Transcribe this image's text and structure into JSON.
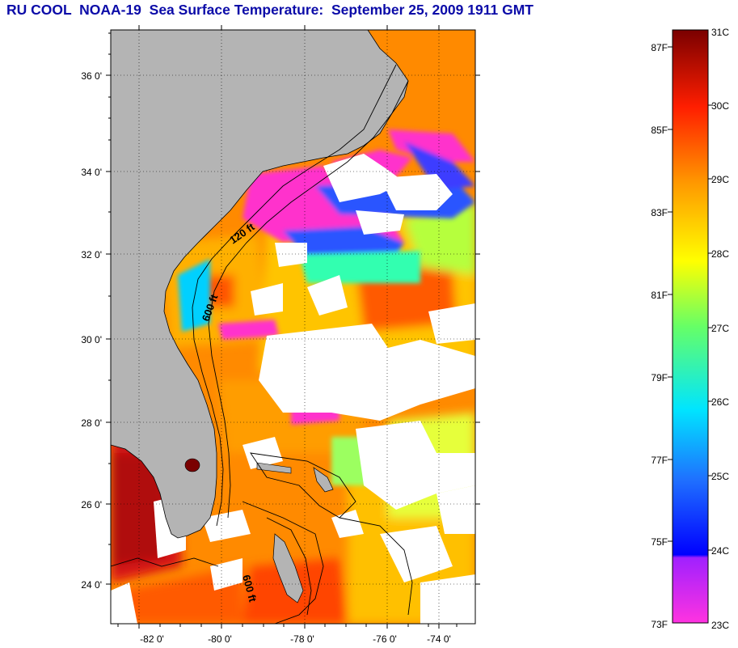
{
  "title": "RU COOL  NOAA-19  Sea Surface Temperature:  September 25, 2009 1911 GMT",
  "lat_ticks": [
    "36 0'",
    "34 0'",
    "32 0'",
    "30 0'",
    "28 0'",
    "26 0'",
    "24 0'"
  ],
  "lon_ticks": [
    "-82 0'",
    "-80 0'",
    "-78 0'",
    "-76 0'",
    "-74 0'"
  ],
  "contour_labels": [
    "120 ft",
    "600 ft",
    "600 ft"
  ],
  "colorbar": {
    "fahrenheit": [
      "87F",
      "85F",
      "83F",
      "81F",
      "79F",
      "77F",
      "75F",
      "73F"
    ],
    "celsius": [
      "31C",
      "30C",
      "29C",
      "28C",
      "27C",
      "26C",
      "25C",
      "24C",
      "23C"
    ]
  },
  "colors": {
    "title": "#0b0ba8",
    "land": "#b4b4b4",
    "cloud": "#ffffff",
    "warm": "#ff6a00",
    "hot": "#c81212",
    "cold": "#ff33cc"
  }
}
